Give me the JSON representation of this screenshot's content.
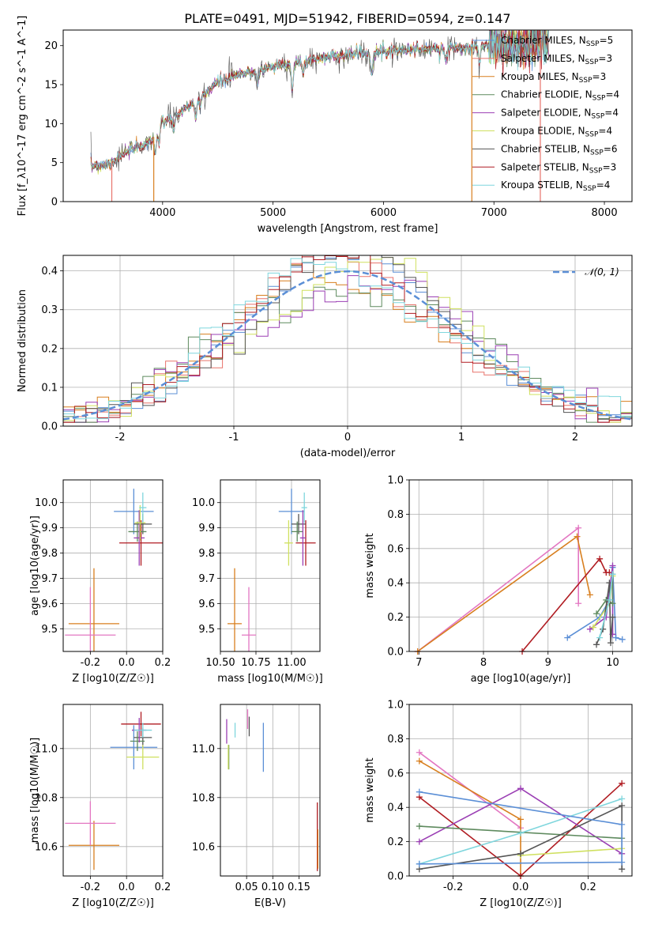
{
  "title": "PLATE=0491, MJD=51942, FIBERID=0594, z=0.147",
  "colors": {
    "Chabrier MILES": "#5b8fd6",
    "Salpeter MILES": "#e8736b",
    "Kroupa MILES": "#d87f1f",
    "Chabrier ELODIE": "#5e8a5e",
    "Salpeter ELODIE": "#9b3fb4",
    "Kroupa ELODIE": "#cfe05f",
    "Chabrier STELIB": "#555555",
    "Salpeter STELIB": "#b01c22",
    "Kroupa STELIB": "#7fd6dd",
    "pink": "#e377c2"
  },
  "chart_data": [
    {
      "id": "spectrum",
      "type": "line",
      "title": "PLATE=0491, MJD=51942, FIBERID=0594, z=0.147",
      "xlabel": "wavelength [Angstrom, rest frame]",
      "ylabel": "Flux [f_λ10^-17 erg cm^-2 s^-1 A^-1]",
      "xlim": [
        3100,
        8250
      ],
      "ylim": [
        0,
        22
      ],
      "xticks": [
        4000,
        5000,
        6000,
        7000,
        8000
      ],
      "yticks": [
        0,
        5,
        10,
        15,
        20
      ],
      "legend_position": "upper right",
      "series": [
        {
          "name": "Chabrier MILES, N_SSP=5",
          "color": "#5b8fd6"
        },
        {
          "name": "Salpeter MILES, N_SSP=3",
          "color": "#e8736b"
        },
        {
          "name": "Kroupa MILES, N_SSP=3",
          "color": "#d87f1f"
        },
        {
          "name": "Chabrier ELODIE, N_SSP=4",
          "color": "#5e8a5e"
        },
        {
          "name": "Salpeter ELODIE, N_SSP=4",
          "color": "#9b3fb4"
        },
        {
          "name": "Kroupa ELODIE, N_SSP=4",
          "color": "#cfe05f"
        },
        {
          "name": "Chabrier STELIB, N_SSP=6",
          "color": "#555555"
        },
        {
          "name": "Salpeter STELIB, N_SSP=3",
          "color": "#b01c22"
        },
        {
          "name": "Kroupa STELIB, N_SSP=4",
          "color": "#7fd6dd"
        }
      ],
      "continuum": {
        "x": [
          3350,
          3500,
          3700,
          3900,
          4000,
          4100,
          4300,
          4500,
          4700,
          4900,
          5100,
          5300,
          5500,
          5700,
          5900,
          6100,
          6300,
          6500,
          6700,
          6900,
          7100,
          7300,
          7500
        ],
        "y": [
          4.6,
          4.8,
          6.5,
          7.8,
          10.2,
          10.8,
          13.0,
          15.3,
          16.3,
          17.0,
          17.6,
          18.0,
          18.6,
          18.9,
          19.2,
          19.4,
          19.5,
          19.6,
          19.7,
          19.9,
          20.1,
          20.3,
          20.5
        ]
      },
      "vertical_drops": [
        {
          "x": 3540,
          "color": "#e8736b"
        },
        {
          "x": 3920,
          "color": "#d87f1f"
        },
        {
          "x": 6800,
          "color": "#d87f1f"
        },
        {
          "x": 7420,
          "color": "#e8736b"
        }
      ]
    },
    {
      "id": "residuals",
      "type": "histogram",
      "xlabel": "(data-model)/error",
      "ylabel": "Normed distribution",
      "xlim": [
        -2.5,
        2.5
      ],
      "ylim": [
        0,
        0.44
      ],
      "xticks": [
        -2,
        -1,
        0,
        1,
        2
      ],
      "yticks": [
        0.0,
        0.1,
        0.2,
        0.3,
        0.4
      ],
      "legend_position": "upper right",
      "reference": {
        "name": "𝒩(0, 1)",
        "mean": 0,
        "sigma": 1,
        "color": "#5b8fd6"
      },
      "bin_width": 0.1
    },
    {
      "id": "age-vs-Z",
      "type": "errorbar",
      "xlabel": "Z [log10(Z/Z☉)]",
      "ylabel": "age  [log10(age/yr)]",
      "xlim": [
        -0.35,
        0.2
      ],
      "ylim": [
        9.41,
        10.09
      ],
      "xticks": [
        -0.2,
        0.0,
        0.2
      ],
      "yticks": [
        9.5,
        9.6,
        9.7,
        9.8,
        9.9,
        10.0
      ],
      "points": [
        {
          "x": 0.04,
          "y": 9.965,
          "xerr": 0.11,
          "yerr": 0.09,
          "color": "#5b8fd6"
        },
        {
          "x": 0.08,
          "y": 9.84,
          "xerr": 0.12,
          "yerr": 0.09,
          "color": "#b01c22"
        },
        {
          "x": 0.09,
          "y": 9.915,
          "xerr": 0.05,
          "yerr": 0.04,
          "color": "#555555"
        },
        {
          "x": 0.06,
          "y": 9.885,
          "xerr": 0.05,
          "yerr": 0.04,
          "color": "#5e8a5e"
        },
        {
          "x": 0.07,
          "y": 9.86,
          "xerr": 0.03,
          "yerr": 0.11,
          "color": "#9b3fb4"
        },
        {
          "x": 0.075,
          "y": 9.92,
          "xerr": 0.03,
          "yerr": 0.07,
          "color": "#cfe05f"
        },
        {
          "x": 0.09,
          "y": 9.98,
          "xerr": 0.02,
          "yerr": 0.06,
          "color": "#7fd6dd"
        },
        {
          "x": -0.18,
          "y": 9.52,
          "xerr": 0.14,
          "yerr": 0.22,
          "color": "#d87f1f"
        },
        {
          "x": -0.2,
          "y": 9.475,
          "xerr": 0.14,
          "yerr": 0.19,
          "color": "#e377c2"
        }
      ]
    },
    {
      "id": "age-vs-mass",
      "type": "errorbar",
      "xlabel": "mass [log10(M/M☉)]",
      "ylabel": "",
      "xlim": [
        10.5,
        11.2
      ],
      "ylim": [
        9.41,
        10.09
      ],
      "xticks": [
        10.5,
        10.75,
        11.0
      ],
      "xticklabels": [
        "10.50",
        "10.75",
        "11.00"
      ],
      "yticks": [
        9.5,
        9.6,
        9.7,
        9.8,
        9.9,
        10.0
      ],
      "points": [
        {
          "x": 11.0,
          "y": 9.965,
          "xerr": 0.09,
          "yerr": 0.09,
          "color": "#5b8fd6"
        },
        {
          "x": 11.1,
          "y": 9.84,
          "xerr": 0.07,
          "yerr": 0.09,
          "color": "#b01c22"
        },
        {
          "x": 11.05,
          "y": 9.915,
          "xerr": 0.05,
          "yerr": 0.04,
          "color": "#555555"
        },
        {
          "x": 11.04,
          "y": 9.885,
          "xerr": 0.04,
          "yerr": 0.04,
          "color": "#5e8a5e"
        },
        {
          "x": 11.08,
          "y": 9.86,
          "xerr": 0.02,
          "yerr": 0.11,
          "color": "#9b3fb4"
        },
        {
          "x": 10.98,
          "y": 9.84,
          "xerr": 0.03,
          "yerr": 0.09,
          "color": "#cfe05f"
        },
        {
          "x": 11.09,
          "y": 9.98,
          "xerr": 0.02,
          "yerr": 0.06,
          "color": "#7fd6dd"
        },
        {
          "x": 10.6,
          "y": 9.52,
          "xerr": 0.05,
          "yerr": 0.22,
          "color": "#d87f1f"
        },
        {
          "x": 10.7,
          "y": 9.475,
          "xerr": 0.05,
          "yerr": 0.19,
          "color": "#e377c2"
        }
      ]
    },
    {
      "id": "weight-vs-age",
      "type": "line",
      "xlabel": "age  [log10(age/yr)]",
      "ylabel": "mass weight",
      "xlim": [
        6.85,
        10.3
      ],
      "ylim": [
        0,
        1
      ],
      "xticks": [
        7,
        8,
        9,
        10
      ],
      "yticks": [
        0.0,
        0.2,
        0.4,
        0.6,
        0.8,
        1.0
      ],
      "series": [
        {
          "color": "#e377c2",
          "x": [
            6.98,
            9.47,
            9.47
          ],
          "y": [
            0.0,
            0.72,
            0.28
          ]
        },
        {
          "color": "#d87f1f",
          "x": [
            6.98,
            9.45,
            9.65
          ],
          "y": [
            0.0,
            0.67,
            0.33
          ]
        },
        {
          "color": "#b01c22",
          "x": [
            8.6,
            9.8,
            9.9,
            9.95
          ],
          "y": [
            0.0,
            0.54,
            0.46,
            0.46
          ]
        },
        {
          "color": "#5b8fd6",
          "x": [
            9.3,
            9.8,
            9.95,
            10.0,
            10.05,
            10.15
          ],
          "y": [
            0.08,
            0.2,
            0.3,
            0.49,
            0.08,
            0.07
          ]
        },
        {
          "color": "#9b3fb4",
          "x": [
            9.65,
            9.9,
            10.0,
            10.0
          ],
          "y": [
            0.13,
            0.2,
            0.5,
            0.1
          ]
        },
        {
          "color": "#cfe05f",
          "x": [
            9.7,
            9.95,
            10.0
          ],
          "y": [
            0.14,
            0.28,
            0.44
          ]
        },
        {
          "color": "#5e8a5e",
          "x": [
            9.75,
            9.9,
            10.0,
            10.0
          ],
          "y": [
            0.22,
            0.3,
            0.28,
            0.45
          ]
        },
        {
          "color": "#555555",
          "x": [
            9.75,
            9.85,
            9.95,
            9.97,
            10.0
          ],
          "y": [
            0.04,
            0.13,
            0.4,
            0.05,
            0.2
          ]
        },
        {
          "color": "#7fd6dd",
          "x": [
            9.8,
            9.95,
            10.0
          ],
          "y": [
            0.08,
            0.3,
            0.45
          ]
        }
      ]
    },
    {
      "id": "mass-vs-Z",
      "type": "errorbar",
      "xlabel": "Z [log10(Z/Z☉)]",
      "ylabel": "mass [log10(M/M☉)]",
      "xlim": [
        -0.35,
        0.2
      ],
      "ylim": [
        10.48,
        11.18
      ],
      "xticks": [
        -0.2,
        0.0,
        0.2
      ],
      "yticks": [
        10.6,
        10.8,
        11.0
      ],
      "points": [
        {
          "x": 0.04,
          "y": 11.005,
          "xerr": 0.13,
          "yerr": 0.09,
          "color": "#5b8fd6"
        },
        {
          "x": 0.08,
          "y": 11.1,
          "xerr": 0.11,
          "yerr": 0.05,
          "color": "#b01c22"
        },
        {
          "x": 0.09,
          "y": 11.045,
          "xerr": 0.05,
          "yerr": 0.04,
          "color": "#555555"
        },
        {
          "x": 0.06,
          "y": 11.03,
          "xerr": 0.04,
          "yerr": 0.04,
          "color": "#5e8a5e"
        },
        {
          "x": 0.07,
          "y": 11.075,
          "xerr": 0.04,
          "yerr": 0.05,
          "color": "#9b3fb4"
        },
        {
          "x": 0.09,
          "y": 10.965,
          "xerr": 0.09,
          "yerr": 0.05,
          "color": "#cfe05f"
        },
        {
          "x": 0.09,
          "y": 11.075,
          "xerr": 0.05,
          "yerr": 0.03,
          "color": "#7fd6dd"
        },
        {
          "x": -0.18,
          "y": 10.605,
          "xerr": 0.14,
          "yerr": 0.1,
          "color": "#d87f1f"
        },
        {
          "x": -0.2,
          "y": 10.695,
          "xerr": 0.14,
          "yerr": 0.09,
          "color": "#e377c2"
        }
      ]
    },
    {
      "id": "mass-vs-EBV",
      "type": "errorbar",
      "xlabel": "E(B-V)",
      "ylabel": "",
      "xlim": [
        0.0,
        0.19
      ],
      "ylim": [
        10.48,
        11.18
      ],
      "xticks": [
        0.05,
        0.1,
        0.15
      ],
      "xticklabels": [
        "0.05",
        "0.10",
        "0.15"
      ],
      "yticks": [
        10.6,
        10.8,
        11.0
      ],
      "points": [
        {
          "x": 0.082,
          "y": 11.005,
          "xerr": 0.0,
          "yerr": 0.1,
          "color": "#5b8fd6"
        },
        {
          "x": 0.185,
          "y": 10.64,
          "xerr": 0.0,
          "yerr": 0.14,
          "color": "#b01c22"
        },
        {
          "x": 0.055,
          "y": 11.09,
          "xerr": 0.0,
          "yerr": 0.04,
          "color": "#555555"
        },
        {
          "x": 0.016,
          "y": 10.965,
          "xerr": 0.0,
          "yerr": 0.05,
          "color": "#5e8a5e"
        },
        {
          "x": 0.012,
          "y": 11.07,
          "xerr": 0.0,
          "yerr": 0.05,
          "color": "#9b3fb4"
        },
        {
          "x": 0.015,
          "y": 10.965,
          "xerr": 0.0,
          "yerr": 0.05,
          "color": "#cfe05f"
        },
        {
          "x": 0.028,
          "y": 11.075,
          "xerr": 0.0,
          "yerr": 0.03,
          "color": "#7fd6dd"
        },
        {
          "x": 0.186,
          "y": 10.59,
          "xerr": 0.0,
          "yerr": 0.08,
          "color": "#d87f1f"
        },
        {
          "x": 0.052,
          "y": 11.12,
          "xerr": 0.0,
          "yerr": 0.04,
          "color": "#e377c2"
        }
      ]
    },
    {
      "id": "weight-vs-Z",
      "type": "line",
      "xlabel": "Z [log10(Z/Z☉)]",
      "ylabel": "mass weight",
      "xlim": [
        -0.33,
        0.33
      ],
      "ylim": [
        0,
        1
      ],
      "xticks": [
        -0.2,
        0.0,
        0.2
      ],
      "yticks": [
        0.0,
        0.2,
        0.4,
        0.6,
        0.8,
        1.0
      ],
      "series": [
        {
          "color": "#e377c2",
          "x": [
            -0.3,
            0.0
          ],
          "y": [
            0.72,
            0.28
          ]
        },
        {
          "color": "#d87f1f",
          "x": [
            -0.3,
            0.0,
            0.0
          ],
          "y": [
            0.67,
            0.33,
            0.0
          ]
        },
        {
          "color": "#b01c22",
          "x": [
            -0.3,
            0.0,
            0.3
          ],
          "y": [
            0.46,
            0.0,
            0.54
          ]
        },
        {
          "color": "#9b3fb4",
          "x": [
            -0.3,
            0.0,
            0.3
          ],
          "y": [
            0.2,
            0.51,
            0.13
          ]
        },
        {
          "color": "#5e8a5e",
          "x": [
            -0.3,
            0.3
          ],
          "y": [
            0.29,
            0.22
          ]
        },
        {
          "color": "#7fd6dd",
          "x": [
            -0.3,
            0.0,
            0.3
          ],
          "y": [
            0.07,
            0.25,
            0.45
          ]
        },
        {
          "color": "#cfe05f",
          "x": [
            0.0,
            0.3
          ],
          "y": [
            0.12,
            0.16
          ]
        },
        {
          "color": "#555555",
          "x": [
            -0.3,
            0.0,
            0.3,
            0.3
          ],
          "y": [
            0.04,
            0.13,
            0.41,
            0.04
          ]
        },
        {
          "color": "#5b8fd6",
          "x": [
            -0.3,
            0.3,
            0.3,
            -0.3
          ],
          "y": [
            0.07,
            0.08,
            0.3,
            0.49
          ]
        }
      ]
    }
  ]
}
